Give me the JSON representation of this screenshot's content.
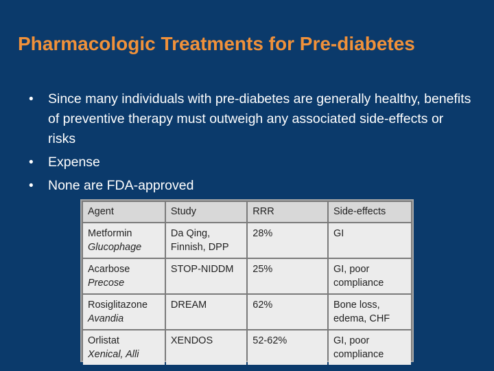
{
  "title": "Pharmacologic Treatments for Pre-diabetes",
  "bullet_symbol": "•",
  "bullets": [
    "Since many individuals with pre-diabetes are generally healthy, benefits of preventive therapy must outweigh any associated side-effects or risks",
    "Expense",
    "None are FDA-approved"
  ],
  "table": {
    "headers": [
      "Agent",
      "Study",
      "RRR",
      "Side-effects"
    ],
    "rows": [
      {
        "agent": "Metformin",
        "brand": "Glucophage",
        "study": "Da Qing, Finnish, DPP",
        "rrr": "28%",
        "side_effects": "GI"
      },
      {
        "agent": "Acarbose",
        "brand": "Precose",
        "study": "STOP-NIDDM",
        "rrr": "25%",
        "side_effects": "GI, poor compliance"
      },
      {
        "agent": "Rosiglitazone",
        "brand": "Avandia",
        "study": "DREAM",
        "rrr": "62%",
        "side_effects": "Bone loss, edema, CHF"
      },
      {
        "agent": "Orlistat",
        "brand": "Xenical, Alli",
        "study": "XENDOS",
        "rrr": "52-62%",
        "side_effects": "GI, poor compliance"
      }
    ]
  },
  "colors": {
    "background": "#0b3a6b",
    "title": "#f0913a",
    "text": "#ffffff"
  }
}
